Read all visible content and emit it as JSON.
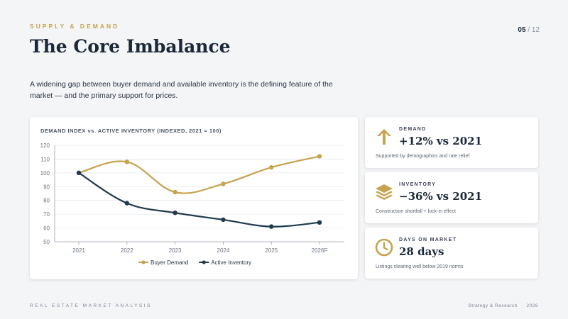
{
  "header": {
    "eyebrow": "SUPPLY & DEMAND",
    "page_current": "05",
    "page_total": "/ 12",
    "title": "The Core Imbalance",
    "subtitle": "A widening gap between buyer demand and available inventory is the defining feature of the market — and the primary support for prices."
  },
  "colors": {
    "accent_gold": "#c7a24f",
    "navy": "#1f3a4d",
    "background": "#f4f5f7"
  },
  "chart_data": {
    "type": "line",
    "title": "DEMAND INDEX vs. ACTIVE INVENTORY (INDEXED, 2021 = 100)",
    "x": [
      "2021",
      "2022",
      "2023",
      "2024",
      "2025",
      "2026F"
    ],
    "ylim": [
      50,
      120
    ],
    "yticks": [
      50,
      60,
      70,
      80,
      90,
      100,
      110,
      120
    ],
    "grid": true,
    "legend_position": "bottom-center",
    "series": [
      {
        "name": "Buyer Demand",
        "color": "#c7a24f",
        "values": [
          100,
          108,
          86,
          92,
          104,
          112
        ]
      },
      {
        "name": "Active Inventory",
        "color": "#1f3a4d",
        "values": [
          100,
          78,
          71,
          66,
          61,
          64
        ]
      }
    ]
  },
  "stats": [
    {
      "icon": "arrow-up-icon",
      "label": "DEMAND",
      "value": "+12% vs 2021",
      "note": "Supported by demographics and rate relief"
    },
    {
      "icon": "layers-icon",
      "label": "INVENTORY",
      "value": "−36% vs 2021",
      "note": "Construction shortfall + lock-in effect"
    },
    {
      "icon": "clock-icon",
      "label": "DAYS ON MARKET",
      "value": "28 days",
      "note": "Listings clearing well below 2019 norms"
    }
  ],
  "footer": {
    "left": "REAL ESTATE MARKET ANALYSIS",
    "right_a": "Strategy & Research",
    "right_sep": "·",
    "right_b": "2026"
  }
}
